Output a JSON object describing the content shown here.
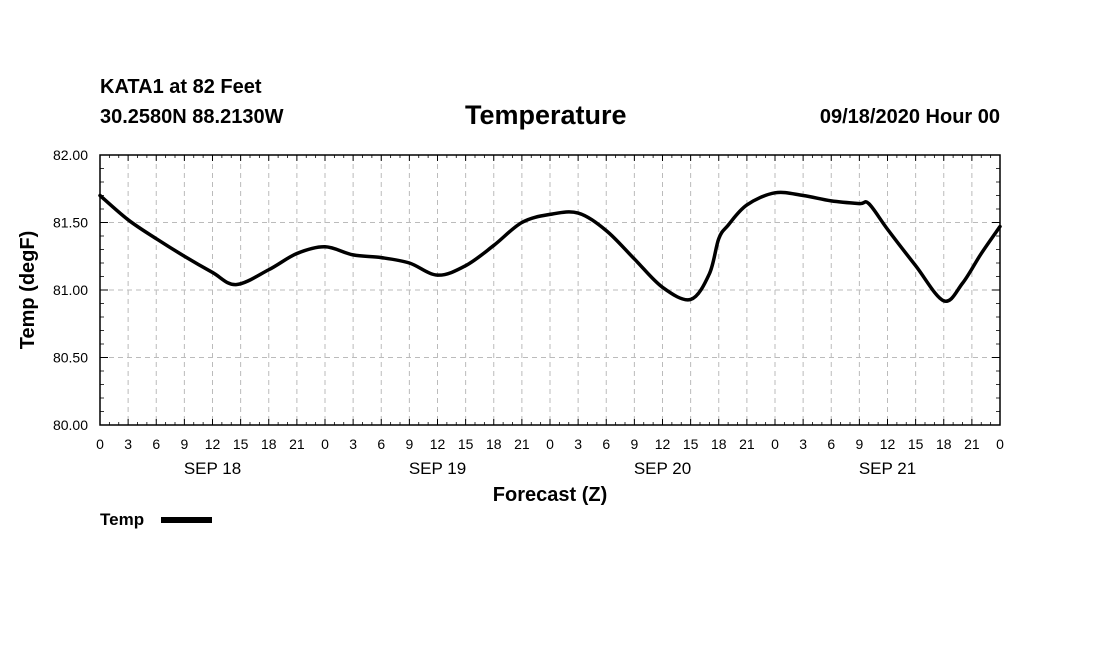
{
  "header": {
    "station": "KATA1 at 82 Feet",
    "coords": "30.2580N 88.2130W",
    "title": "Temperature",
    "datetime": "09/18/2020 Hour 00"
  },
  "legend": {
    "label": "Temp"
  },
  "chart_data": {
    "type": "line",
    "title": "Temperature",
    "xlabel": "Forecast (Z)",
    "ylabel": "Temp (degF)",
    "ylim": [
      80.0,
      82.0
    ],
    "xlim": [
      0,
      96
    ],
    "grid": true,
    "legend_position": "bottom-left",
    "y_ticks": [
      "80.00",
      "80.50",
      "81.00",
      "81.50",
      "82.00"
    ],
    "x_tick_labels": [
      "0",
      "3",
      "6",
      "9",
      "12",
      "15",
      "18",
      "21",
      "0",
      "3",
      "6",
      "9",
      "12",
      "15",
      "18",
      "21",
      "0",
      "3",
      "6",
      "9",
      "12",
      "15",
      "18",
      "21",
      "0",
      "3",
      "6",
      "9",
      "12",
      "15",
      "18",
      "21",
      "0"
    ],
    "date_labels": [
      {
        "label": "SEP 18",
        "hour": 12
      },
      {
        "label": "SEP 19",
        "hour": 36
      },
      {
        "label": "SEP 20",
        "hour": 60
      },
      {
        "label": "SEP 21",
        "hour": 84
      }
    ],
    "series": [
      {
        "name": "Temp",
        "color": "#000000",
        "x": [
          0,
          3,
          6,
          9,
          12,
          14.5,
          18,
          21,
          24,
          27,
          30,
          33,
          36,
          39,
          42,
          45,
          48,
          51,
          54,
          57,
          60,
          63,
          65,
          66,
          67,
          69,
          72,
          75,
          78,
          81,
          82,
          84,
          87,
          90,
          92,
          94,
          96
        ],
        "y": [
          81.7,
          81.52,
          81.38,
          81.25,
          81.13,
          81.04,
          81.15,
          81.27,
          81.32,
          81.26,
          81.24,
          81.2,
          81.11,
          81.18,
          81.33,
          81.5,
          81.56,
          81.57,
          81.44,
          81.23,
          81.02,
          80.93,
          81.12,
          81.38,
          81.48,
          81.63,
          81.72,
          81.7,
          81.66,
          81.64,
          81.64,
          81.45,
          81.18,
          80.92,
          81.05,
          81.27,
          81.47
        ]
      }
    ]
  }
}
